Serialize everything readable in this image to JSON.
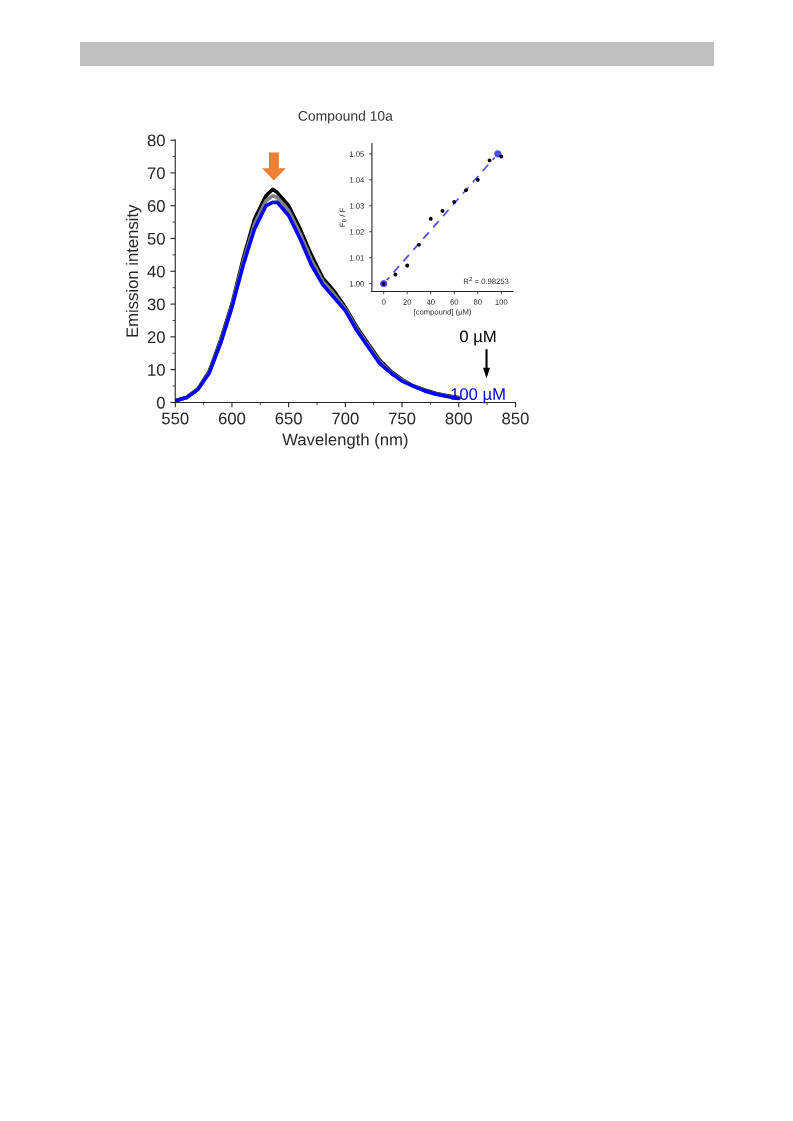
{
  "chart_data": [
    {
      "type": "line",
      "title": "Compound 10a",
      "xlabel": "Wavelength (nm)",
      "ylabel": "Emission intensity",
      "x": [
        550,
        560,
        570,
        580,
        590,
        600,
        610,
        620,
        630,
        636,
        640,
        650,
        660,
        670,
        680,
        690,
        700,
        710,
        720,
        730,
        740,
        750,
        760,
        770,
        780,
        790,
        800
      ],
      "series": [
        {
          "color": "#000000",
          "values": [
            0.5,
            1.5,
            4,
            9.5,
            19,
            30,
            44,
            56,
            63,
            65,
            64,
            60,
            53,
            45,
            38,
            34,
            29,
            23,
            18,
            13,
            9.5,
            7,
            5,
            3.8,
            2.7,
            2,
            1.5
          ]
        },
        {
          "color": "#808080",
          "values": [
            0.5,
            1.5,
            4,
            9.3,
            18.5,
            29.5,
            43,
            54.5,
            61.5,
            63,
            62.5,
            58.5,
            51.5,
            43.5,
            37,
            33,
            28.5,
            22.5,
            17.5,
            12.5,
            9.2,
            6.8,
            5,
            3.6,
            2.6,
            1.9,
            1.4
          ]
        },
        {
          "color": "#0000ff",
          "values": [
            0.5,
            1.5,
            4,
            9,
            18,
            29,
            42,
            53,
            60,
            61,
            61,
            57,
            50,
            42,
            36,
            32,
            28,
            22,
            17,
            12,
            9,
            6.5,
            5,
            3.5,
            2.5,
            1.8,
            1.2
          ]
        }
      ],
      "xlim": [
        550,
        850
      ],
      "xticks": [
        550,
        600,
        650,
        700,
        750,
        800,
        850
      ],
      "ylim": [
        0,
        80
      ],
      "yticks": [
        0,
        10,
        20,
        30,
        40,
        50,
        60,
        70,
        80
      ],
      "annotations": [
        "0 µM",
        "100 µM"
      ],
      "grid": false,
      "legend": false,
      "marker": "none",
      "line_style": "solid"
    },
    {
      "type": "scatter",
      "xlabel": "[compound] (µM)",
      "ylabel": "F$_{0}$ / F",
      "series": [
        {
          "type": "scatter",
          "color": "#000000",
          "x": [
            0,
            10,
            20,
            30,
            40,
            50,
            60,
            70,
            80,
            90,
            100
          ],
          "values": [
            1.0,
            1.0035,
            1.007,
            1.015,
            1.025,
            1.028,
            1.0315,
            1.036,
            1.04,
            1.0475,
            1.049
          ]
        },
        {
          "type": "line",
          "color": "#4d4dff",
          "line_style": "dashed",
          "x": [
            0,
            97
          ],
          "values": [
            1.0,
            1.05
          ]
        }
      ],
      "xlim": [
        -10,
        110
      ],
      "xticks": [
        0,
        20,
        40,
        60,
        80,
        100
      ],
      "ylim": [
        0.997,
        1.054
      ],
      "yticks": [
        {
          "value": 1.0,
          "label": "1.00"
        },
        1.01,
        1.02,
        1.03,
        1.04,
        1.05
      ],
      "annotations": [
        "R$^{2}$ = 0.98253"
      ],
      "grid": false,
      "legend": false,
      "marker": "circle"
    }
  ]
}
